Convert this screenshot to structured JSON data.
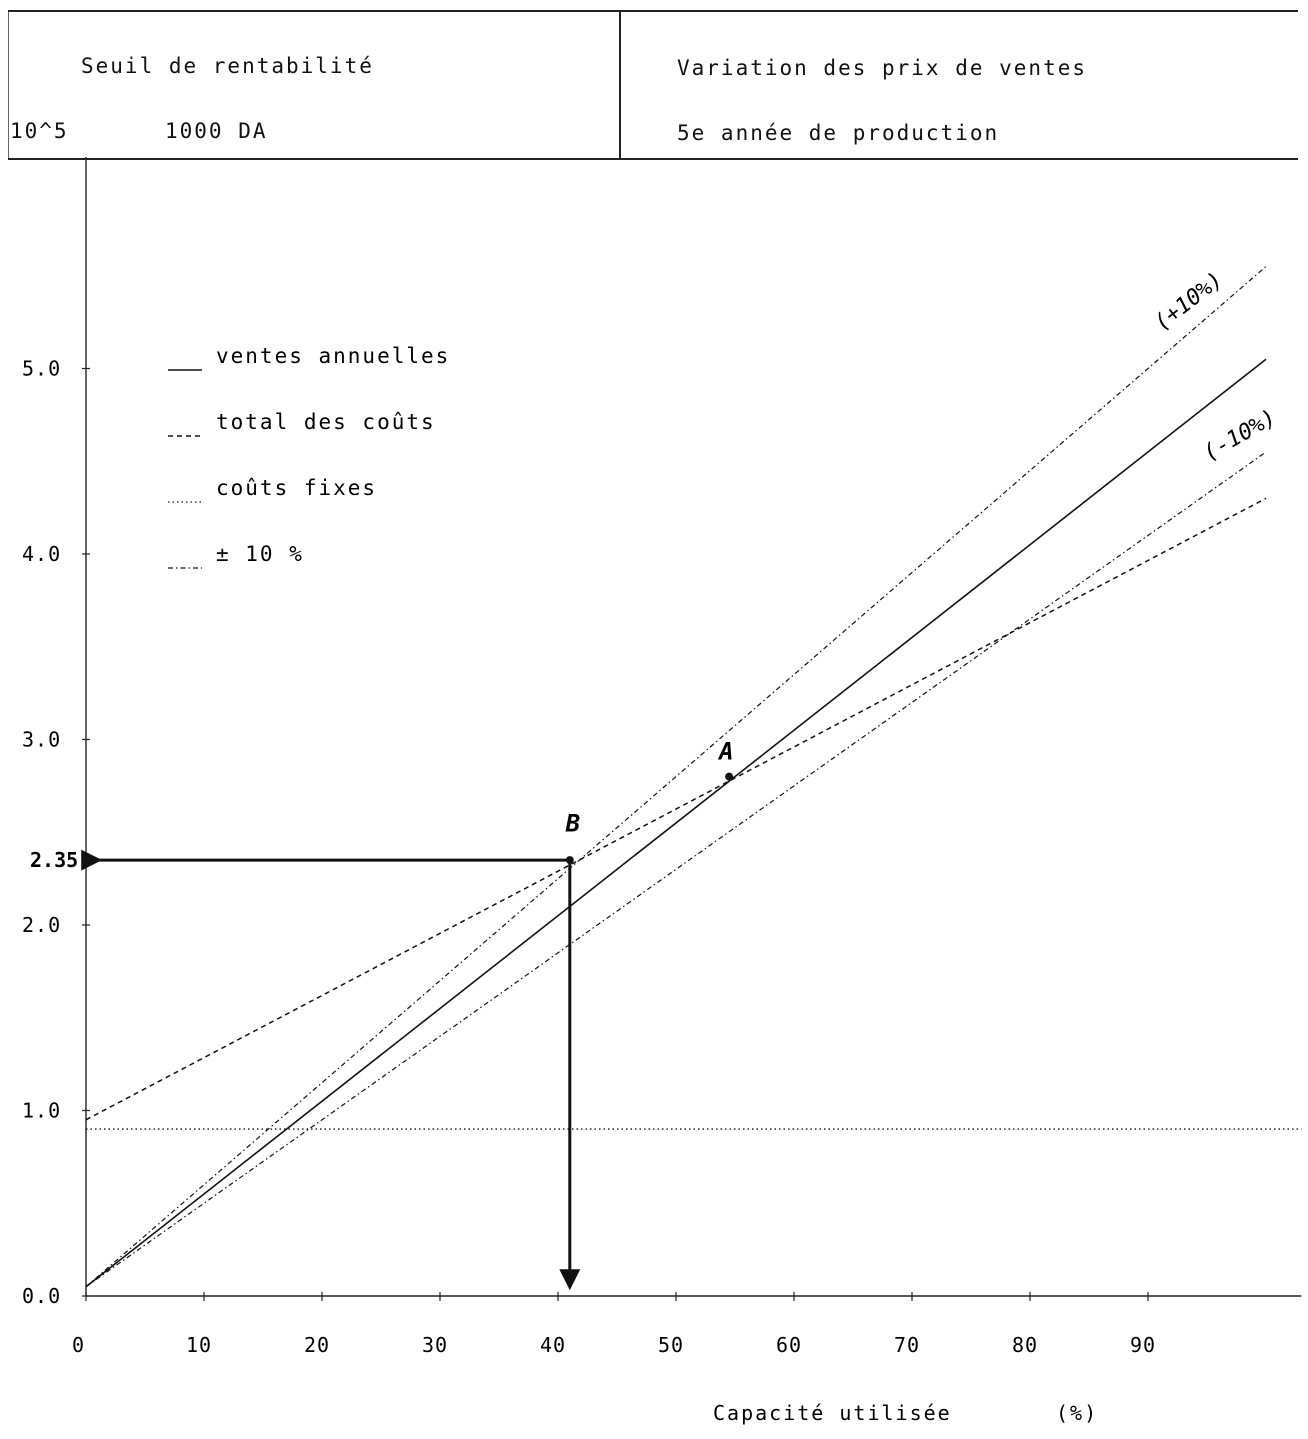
{
  "header": {
    "left_title": "Seuil de rentabilité",
    "left_unit_exp": "10^5",
    "left_unit": "1000 DA",
    "right_title": "Variation des prix de ventes",
    "right_subtitle": "5e année de production"
  },
  "chart_data": {
    "type": "line",
    "xlabel": "Capacité utilisée",
    "xunit": "(%)",
    "ylabel": "",
    "xlim": [
      0,
      103
    ],
    "ylim": [
      0,
      5.8
    ],
    "x_ticks": [
      0,
      10,
      20,
      30,
      40,
      50,
      60,
      70,
      80,
      90
    ],
    "y_ticks": [
      0.0,
      1.0,
      2.0,
      3.0,
      4.0,
      5.0
    ],
    "y_tick_labels": [
      "0.0",
      "1.0",
      "2.0",
      "3.0",
      "4.0",
      "5.0"
    ],
    "grid": false,
    "legend_position": "top-left",
    "legend": [
      {
        "symbol": "__",
        "label": "ventes annuelles",
        "style": "solid"
      },
      {
        "symbol": "._",
        "label": "total des coûts",
        "style": "dashed"
      },
      {
        "symbol": "....",
        "label": "coûts fixes",
        "style": "dotted"
      },
      {
        "symbol": "..._",
        "label": "± 10 %",
        "style": "dashdot"
      }
    ],
    "series": [
      {
        "name": "ventes annuelles",
        "style": "solid",
        "x": [
          0,
          100
        ],
        "y": [
          0.05,
          5.05
        ]
      },
      {
        "name": "total des coûts",
        "style": "dashed",
        "x": [
          0,
          100
        ],
        "y": [
          0.95,
          4.3
        ]
      },
      {
        "name": "coûts fixes",
        "style": "dotted",
        "x": [
          0,
          103
        ],
        "y": [
          0.9,
          0.9
        ]
      },
      {
        "name": "+10%",
        "style": "dashdot",
        "x": [
          0,
          100
        ],
        "y": [
          0.05,
          5.55
        ]
      },
      {
        "name": "-10%",
        "style": "dashdot",
        "x": [
          0,
          100
        ],
        "y": [
          0.05,
          4.55
        ]
      }
    ],
    "annotations": [
      {
        "text": "(+10%)",
        "x": 92,
        "y": 5.2
      },
      {
        "text": "(-10%)",
        "x": 96,
        "y": 4.5
      },
      {
        "text": "A",
        "x": 54.5,
        "y": 2.85
      },
      {
        "text": "B",
        "x": 41.5,
        "y": 2.45
      },
      {
        "text": "2.35",
        "x": 0,
        "y": 2.35
      }
    ],
    "points": [
      {
        "name": "A",
        "x": 54.5,
        "y": 2.8
      },
      {
        "name": "B",
        "x": 41,
        "y": 2.35
      }
    ]
  }
}
